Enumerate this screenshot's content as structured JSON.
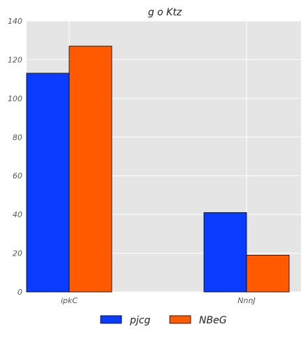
{
  "chart_data": {
    "type": "bar",
    "title": "g o Ktz",
    "categories": [
      "ipkC",
      "NnnJ"
    ],
    "series": [
      {
        "name": "pjcg",
        "values": [
          113,
          41
        ],
        "color": "#0a3cff"
      },
      {
        "name": "NBeG",
        "values": [
          127,
          19
        ],
        "color": "#ff5a00"
      }
    ],
    "ylim": [
      0,
      140
    ],
    "yticks": [
      "0",
      "20",
      "40",
      "60",
      "80",
      "100",
      "120",
      "140"
    ],
    "grid": true,
    "legend_position": "bottom-center",
    "background_color": "#e5e5e5",
    "grid_color": "#ffffff"
  }
}
